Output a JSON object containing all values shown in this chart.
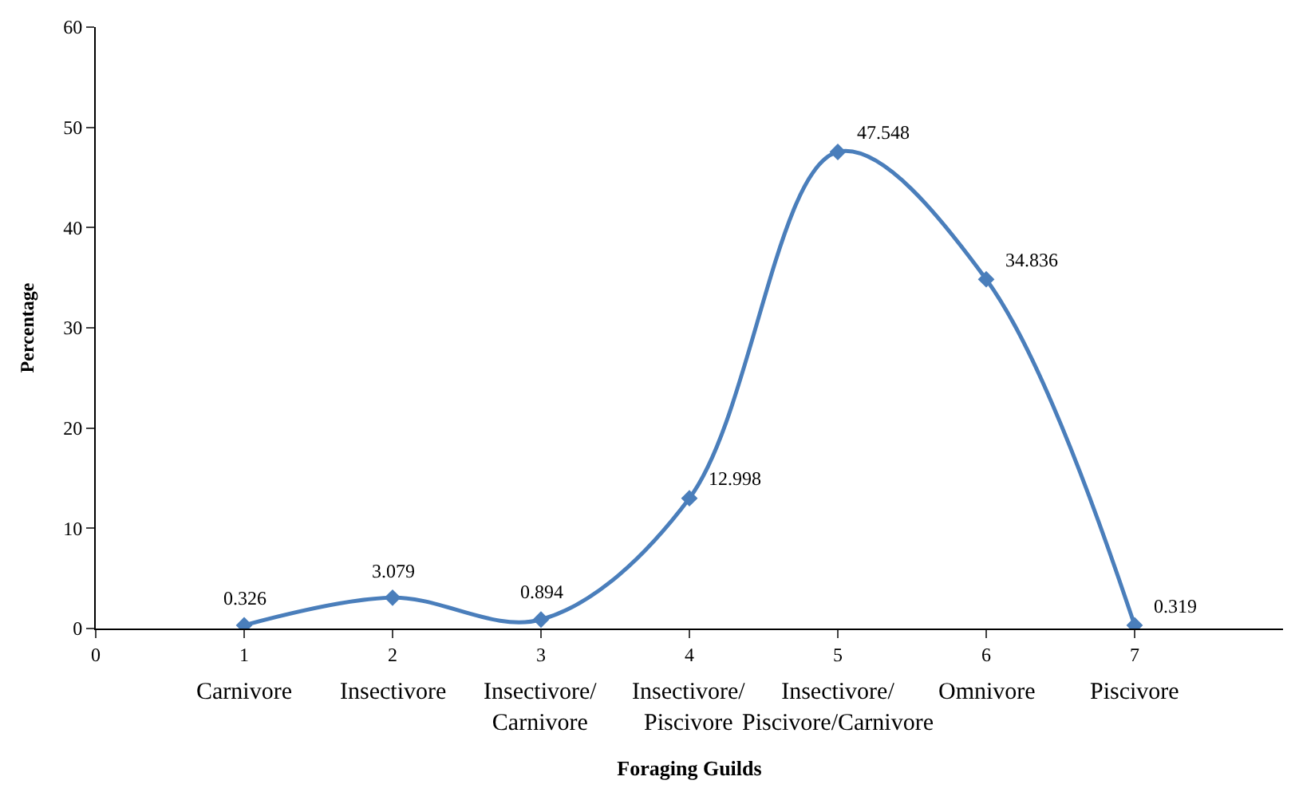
{
  "chart_data": {
    "type": "line",
    "xlabel": "Foraging Guilds",
    "ylabel": "Percentage",
    "series": [
      {
        "color": "#4a7ebb",
        "x": [
          1,
          2,
          3,
          4,
          5,
          6,
          7
        ],
        "values": [
          0.326,
          3.079,
          0.894,
          12.998,
          47.548,
          34.836,
          0.319
        ]
      }
    ],
    "data_labels": true,
    "marker": "diamond",
    "line_style": "solid",
    "grid": false,
    "legend": false,
    "xlim": [
      0,
      8
    ],
    "xticks": [
      0,
      1,
      2,
      3,
      4,
      5,
      6,
      7
    ],
    "ylim": [
      0,
      60
    ],
    "yticks": [
      0,
      10,
      20,
      30,
      40,
      50,
      60
    ],
    "annotations": [
      "Carnivore",
      "Insectivore",
      "Insectivore/\nCarnivore",
      "Insectivore/\nPiscivore",
      "Insectivore/\nPiscivore/Carnivore",
      "Omnivore",
      "Piscivore"
    ]
  }
}
